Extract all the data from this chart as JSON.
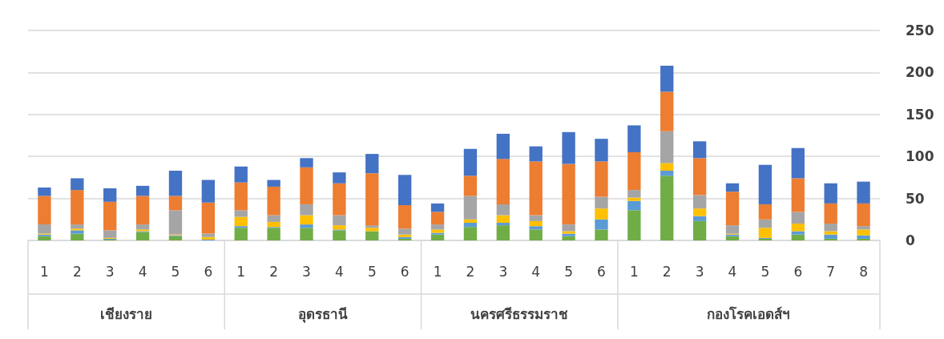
{
  "chart_data": {
    "type": "bar",
    "stacked": true,
    "categories": [
      "1",
      "2",
      "3",
      "4",
      "5",
      "6",
      "1",
      "2",
      "3",
      "4",
      "5",
      "6",
      "1",
      "2",
      "3",
      "4",
      "5",
      "6",
      "1",
      "2",
      "3",
      "4",
      "5",
      "6",
      "7",
      "8"
    ],
    "annotations": [
      "เชียงราย",
      "อุดรธานี",
      "นครศรีธรรมราช",
      "กองโรคเอดส์ฯ"
    ],
    "series": [
      {
        "color": "#70ad47",
        "values": [
          5,
          8,
          1,
          10,
          5,
          0,
          15,
          15,
          15,
          12,
          11,
          2,
          7,
          16,
          18,
          13,
          5,
          13,
          36,
          77,
          23,
          5,
          2,
          7,
          2,
          2
        ]
      },
      {
        "color": "#5b9bd5",
        "values": [
          2,
          4,
          1,
          1,
          1,
          1,
          2,
          1,
          4,
          1,
          0,
          2,
          2,
          5,
          3,
          4,
          3,
          12,
          11,
          6,
          6,
          2,
          1,
          4,
          5,
          4
        ]
      },
      {
        "color": "#ffc000",
        "values": [
          1,
          2,
          1,
          2,
          1,
          3,
          11,
          6,
          11,
          5,
          4,
          3,
          4,
          4,
          9,
          6,
          3,
          13,
          4,
          9,
          9,
          1,
          12,
          9,
          4,
          7
        ]
      },
      {
        "color": "#a5a5a5",
        "values": [
          11,
          5,
          9,
          6,
          29,
          4,
          8,
          8,
          13,
          12,
          3,
          7,
          6,
          28,
          13,
          7,
          8,
          14,
          9,
          38,
          16,
          10,
          10,
          14,
          9,
          4
        ]
      },
      {
        "color": "#ed7d31",
        "values": [
          34,
          41,
          34,
          34,
          17,
          37,
          33,
          34,
          44,
          38,
          62,
          28,
          15,
          24,
          54,
          64,
          72,
          42,
          45,
          47,
          44,
          40,
          18,
          40,
          24,
          27
        ]
      },
      {
        "color": "#4472c4",
        "values": [
          10,
          14,
          16,
          12,
          30,
          27,
          19,
          8,
          11,
          13,
          23,
          36,
          10,
          32,
          30,
          18,
          38,
          27,
          32,
          31,
          20,
          10,
          47,
          36,
          24,
          26
        ]
      }
    ],
    "ylim": [
      0,
      250
    ],
    "yticks": [
      0,
      50,
      100,
      150,
      200,
      250
    ],
    "grid": "y"
  }
}
